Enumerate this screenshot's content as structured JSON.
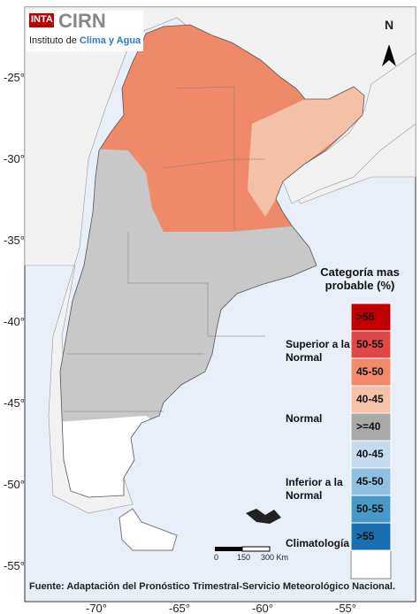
{
  "logo": {
    "badge": "INTA",
    "name": "CIRN",
    "subtitle_prefix": "Instituto de",
    "subtitle_highlight": "Clima y Agua"
  },
  "north_label": "N",
  "lat_labels": [
    "-25°",
    "-30°",
    "-35°",
    "-40°",
    "-45°",
    "-50°",
    "-55°"
  ],
  "lon_labels": [
    "-70°",
    "-65°",
    "-60°",
    "-55°"
  ],
  "legend": {
    "title": "Categoría mas probable (%)",
    "groups": [
      "Superior a la Normal",
      "Normal",
      "Inferior a la Normal",
      "Climatología"
    ],
    "items": [
      {
        "label": ">55",
        "color": "#c00000"
      },
      {
        "label": "50-55",
        "color": "#e04848"
      },
      {
        "label": "45-50",
        "color": "#f08a6a"
      },
      {
        "label": "40-45",
        "color": "#f6c2aa"
      },
      {
        "label": ">=40",
        "color": "#a9a9a9"
      },
      {
        "label": "40-45",
        "color": "#c6dcee"
      },
      {
        "label": "45-50",
        "color": "#8fc0e2"
      },
      {
        "label": "50-55",
        "color": "#4a98c8"
      },
      {
        "label": ">55",
        "color": "#1a6fb0"
      }
    ]
  },
  "scale_bar": {
    "labels": [
      "0",
      "150",
      "300 Km"
    ]
  },
  "source": "Fuente: Adaptación del Pronóstico Trimestral-Servicio Meteorológico Nacional."
}
